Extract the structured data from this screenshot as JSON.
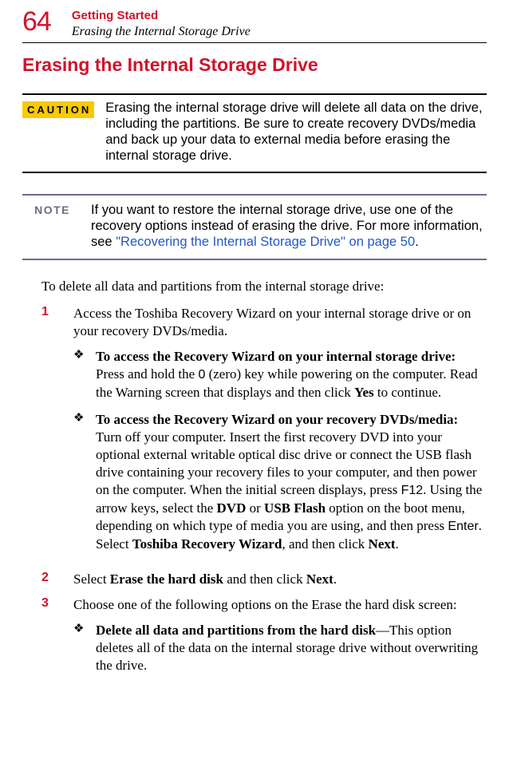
{
  "header": {
    "page_number": "64",
    "chapter": "Getting Started",
    "subtitle": "Erasing the Internal Storage Drive"
  },
  "h1": "Erasing the Internal Storage Drive",
  "caution": {
    "label": "CAUTION",
    "text": "Erasing the internal storage drive will delete all data on the drive, including the partitions. Be sure to create recovery DVDs/media and back up your data to external media before erasing the internal storage drive."
  },
  "note": {
    "label": "NOTE",
    "text_before": "If you want to restore the internal storage drive, use one of the recovery options instead of erasing the drive. For more information, see ",
    "link_text": "\"Recovering the Internal Storage Drive\" on page 50",
    "text_after": "."
  },
  "intro": "To delete all data and partitions from the internal storage drive:",
  "steps": {
    "s1": {
      "num": "1",
      "text": "Access the Toshiba Recovery Wizard on your internal storage drive or on your recovery DVDs/media.",
      "sub": {
        "a": {
          "lead_bold": "To access the Recovery Wizard on your internal storage drive:",
          "t1": " Press and hold the ",
          "key1": "0",
          "t2": " (zero) key while powering on the computer. Read the Warning screen that displays and then click ",
          "b1": "Yes",
          "t3": " to continue."
        },
        "b": {
          "lead_bold": "To access the Recovery Wizard on your recovery DVDs/media:",
          "t1": " Turn off your computer. Insert the first recovery DVD into your optional external writable optical disc drive or connect the USB flash drive containing your recovery files to your computer, and then power on the computer. When the initial screen displays, press ",
          "key1": "F12",
          "t2": ". Using the arrow keys, select the ",
          "b1": "DVD",
          "t3": " or ",
          "b2": "USB Flash",
          "t4": " option on the boot menu, depending on which type of media you are using, and then press ",
          "key2": "Enter",
          "t5": ". Select ",
          "b3": "Toshiba Recovery Wizard",
          "t6": ", and then click ",
          "b4": "Next",
          "t7": "."
        }
      }
    },
    "s2": {
      "num": "2",
      "t1": "Select ",
      "b1": "Erase the hard disk",
      "t2": " and then click ",
      "b2": "Next",
      "t3": "."
    },
    "s3": {
      "num": "3",
      "text": "Choose one of the following options on the Erase the hard disk screen:",
      "sub": {
        "a": {
          "lead_bold": "Delete all data and partitions from the hard disk",
          "t1": "—This option deletes all of the data on the internal storage drive without overwriting the drive."
        }
      }
    }
  },
  "colors": {
    "accent_red": "#d2122a",
    "note_blue": "#6a6c8f",
    "link_blue": "#2458c6",
    "caution_yellow": "#faca00"
  }
}
